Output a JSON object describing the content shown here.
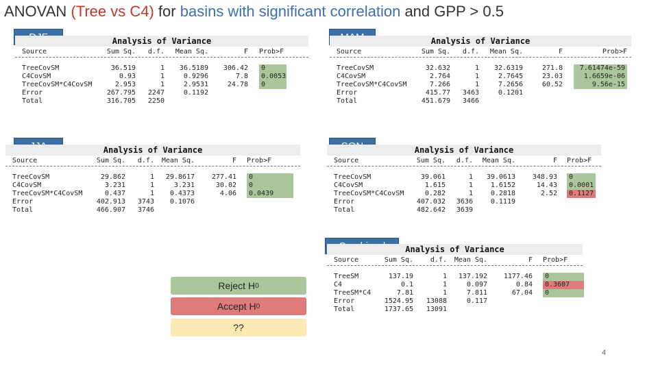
{
  "title": {
    "prefix": "ANOVAN ",
    "red": "(Tree vs C4)",
    "mid": " for ",
    "blue": "basins with significant correlation",
    "suffix": " and GPP > 0.5"
  },
  "panel_title": "Analysis of Variance",
  "headers": {
    "source": "Source",
    "sumsq": "Sum Sq.",
    "df": "d.f.",
    "meansq": "Mean Sq.",
    "f": "F",
    "prob": "Prob>F"
  },
  "panels": {
    "djf": {
      "label": "DJF",
      "rows": [
        {
          "source": "TreeCovSM",
          "sumsq": "36.519",
          "df": "1",
          "meansq": "36.5189",
          "f": "306.42",
          "prob": "0"
        },
        {
          "source": "C4CovSM",
          "sumsq": "0.93",
          "df": "1",
          "meansq": "0.9296",
          "f": "7.8",
          "prob": "0.0053"
        },
        {
          "source": "TreeCovSM*C4CovSM",
          "sumsq": "2.953",
          "df": "1",
          "meansq": "2.9531",
          "f": "24.78",
          "prob": "0"
        },
        {
          "source": "Error",
          "sumsq": "267.795",
          "df": "2247",
          "meansq": "0.1192",
          "f": "",
          "prob": ""
        },
        {
          "source": "Total",
          "sumsq": "316.705",
          "df": "2250",
          "meansq": "",
          "f": "",
          "prob": ""
        }
      ]
    },
    "mam": {
      "label": "MAM",
      "rows": [
        {
          "source": "TreeCovSM",
          "sumsq": "32.632",
          "df": "1",
          "meansq": "32.6319",
          "f": "271.8",
          "prob": "7.61474e-59"
        },
        {
          "source": "C4CovSM",
          "sumsq": "2.764",
          "df": "1",
          "meansq": "2.7645",
          "f": "23.03",
          "prob": "1.6659e-06"
        },
        {
          "source": "TreeCovSM*C4CovSM",
          "sumsq": "7.266",
          "df": "1",
          "meansq": "7.2656",
          "f": "60.52",
          "prob": "9.56e-15"
        },
        {
          "source": "Error",
          "sumsq": "415.77",
          "df": "3463",
          "meansq": "0.1201",
          "f": "",
          "prob": ""
        },
        {
          "source": "Total",
          "sumsq": "451.679",
          "df": "3466",
          "meansq": "",
          "f": "",
          "prob": ""
        }
      ]
    },
    "jja": {
      "label": "JJA",
      "rows": [
        {
          "source": "TreeCovSM",
          "sumsq": "29.862",
          "df": "1",
          "meansq": "29.8617",
          "f": "277.41",
          "prob": "0"
        },
        {
          "source": "C4CovSM",
          "sumsq": "3.231",
          "df": "1",
          "meansq": "3.231",
          "f": "30.02",
          "prob": "0"
        },
        {
          "source": "TreeCovSM*C4CovSM",
          "sumsq": "0.437",
          "df": "1",
          "meansq": "0.4373",
          "f": "4.06",
          "prob": "0.0439"
        },
        {
          "source": "Error",
          "sumsq": "402.913",
          "df": "3743",
          "meansq": "0.1076",
          "f": "",
          "prob": ""
        },
        {
          "source": "Total",
          "sumsq": "466.907",
          "df": "3746",
          "meansq": "",
          "f": "",
          "prob": ""
        }
      ]
    },
    "son": {
      "label": "SON",
      "rows": [
        {
          "source": "TreeCovSM",
          "sumsq": "39.061",
          "df": "1",
          "meansq": "39.0613",
          "f": "348.93",
          "prob": "0"
        },
        {
          "source": "C4CovSM",
          "sumsq": "1.615",
          "df": "1",
          "meansq": "1.6152",
          "f": "14.43",
          "prob": "0.0001"
        },
        {
          "source": "TreeCovSM*C4CovSM",
          "sumsq": "0.282",
          "df": "1",
          "meansq": "0.2818",
          "f": "2.52",
          "prob": "0.1127"
        },
        {
          "source": "Error",
          "sumsq": "407.032",
          "df": "3636",
          "meansq": "0.1119",
          "f": "",
          "prob": ""
        },
        {
          "source": "Total",
          "sumsq": "482.642",
          "df": "3639",
          "meansq": "",
          "f": "",
          "prob": ""
        }
      ]
    },
    "combined": {
      "label": "Combined",
      "rows": [
        {
          "source": "TreeSM",
          "sumsq": "137.19",
          "df": "1",
          "meansq": "137.192",
          "f": "1177.46",
          "prob": "0"
        },
        {
          "source": "C4",
          "sumsq": "0.1",
          "df": "1",
          "meansq": "0.097",
          "f": "0.84",
          "prob": "0.3607"
        },
        {
          "source": "TreeSM*C4",
          "sumsq": "7.81",
          "df": "1",
          "meansq": "7.811",
          "f": "67.04",
          "prob": "0"
        },
        {
          "source": "Error",
          "sumsq": "1524.95",
          "df": "13088",
          "meansq": "0.117",
          "f": "",
          "prob": ""
        },
        {
          "source": "Total",
          "sumsq": "1737.65",
          "df": "13091",
          "meansq": "",
          "f": "",
          "prob": ""
        }
      ]
    }
  },
  "legend": {
    "reject": "Reject H",
    "accept": "Accept H",
    "sub": "0",
    "unknown": "??"
  },
  "colors": {
    "reject": "#a9c79a",
    "accept": "#df7b7b",
    "unknown": "#fde9b3",
    "season_bg": "#3c6fa3"
  },
  "page_number": "4"
}
